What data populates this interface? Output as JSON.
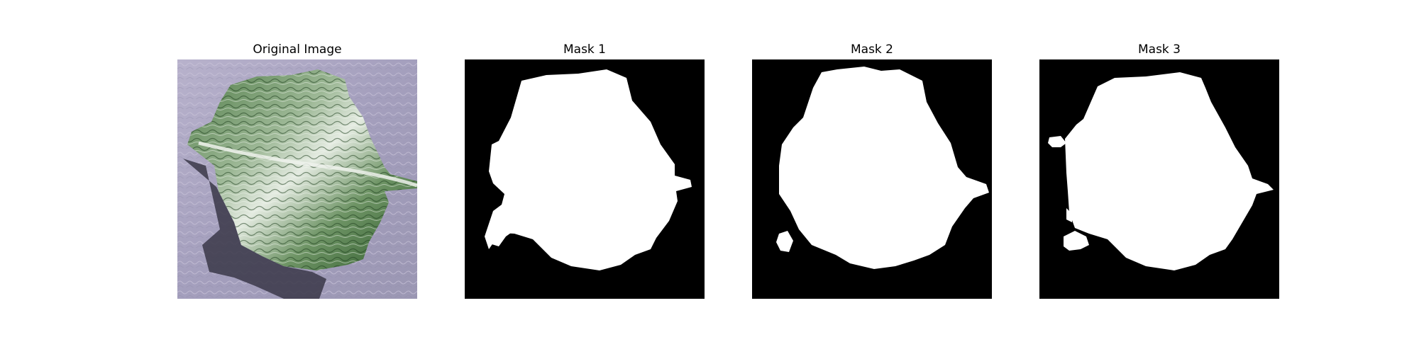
{
  "panels": [
    {
      "title": "Original Image"
    },
    {
      "title": "Mask 1"
    },
    {
      "title": "Mask 2"
    },
    {
      "title": "Mask 3"
    }
  ],
  "colors": {
    "background": "#ffffff",
    "mask_background": "#000000",
    "mask_foreground": "#ffffff",
    "leaf_green_dark": "#2f5e2c",
    "leaf_green_light": "#dfe6dc",
    "table_surface": "#aaa4c1",
    "shadow": "#3a3748"
  },
  "icons": {
    "original": "leaf-photo",
    "mask": "segmentation-mask"
  }
}
